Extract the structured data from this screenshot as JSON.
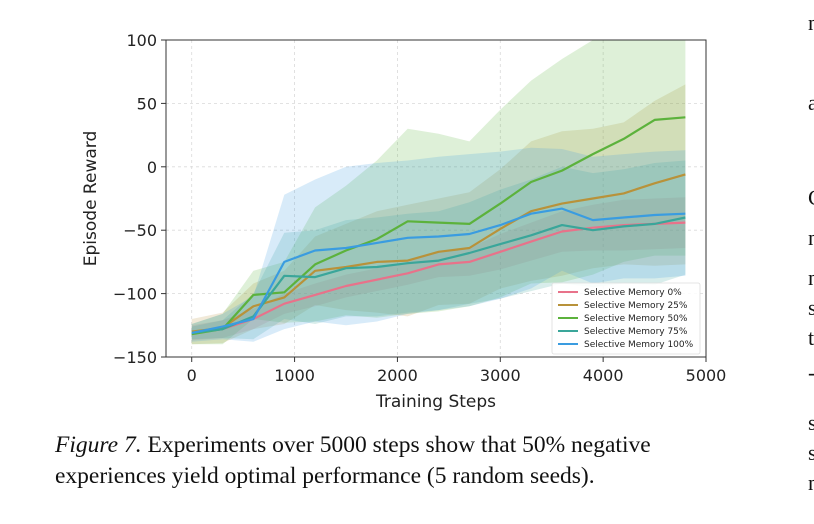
{
  "figure": {
    "caption_label": "Figure 7.",
    "caption_text": " Experiments over 5000 steps show that 50% negative experiences yield optimal performance (5 random seeds)."
  },
  "side_text": [
    "n",
    "a",
    "C",
    "n",
    "n",
    "s",
    "t",
    "-",
    "s",
    "s",
    "n"
  ],
  "chart_data": {
    "type": "line",
    "title": "",
    "xlabel": "Training Steps",
    "ylabel": "Episode Reward",
    "xlim": [
      -250,
      5000
    ],
    "ylim": [
      -150,
      100
    ],
    "xticks": [
      0,
      1000,
      2000,
      3000,
      4000,
      5000
    ],
    "yticks": [
      -150,
      -100,
      -50,
      0,
      50,
      100
    ],
    "xtick_labels": [
      "0",
      "1000",
      "2000",
      "3000",
      "4000",
      "5000"
    ],
    "ytick_labels": [
      "−150",
      "−100",
      "−50",
      "0",
      "50",
      "100"
    ],
    "grid": true,
    "legend_position": "lower-right",
    "series": [
      {
        "name": "Selective Memory 0%",
        "color": "#e8728a",
        "x": [
          0,
          300,
          600,
          900,
          1200,
          1500,
          2100,
          2400,
          2700,
          3000,
          3300,
          3600,
          3900,
          4200,
          4500,
          4800
        ],
        "y": [
          -131,
          -128,
          -120,
          -108,
          -101,
          -94,
          -84,
          -77,
          -75,
          -67,
          -59,
          -51,
          -48,
          -46,
          -45,
          -44
        ],
        "upper": [
          -125,
          -121,
          -112,
          -100,
          -92,
          -85,
          -75,
          -67,
          -64,
          -53,
          -44,
          -35,
          -30,
          -26,
          -25,
          -24
        ],
        "lower": [
          -137,
          -135,
          -128,
          -116,
          -110,
          -103,
          -93,
          -87,
          -86,
          -81,
          -74,
          -67,
          -66,
          -66,
          -65,
          -64
        ]
      },
      {
        "name": "Selective Memory 25%",
        "color": "#b8923a",
        "x": [
          0,
          300,
          600,
          900,
          1200,
          1500,
          1800,
          2100,
          2400,
          2700,
          3000,
          3300,
          3600,
          3900,
          4200,
          4500,
          4800
        ],
        "y": [
          -130,
          -127,
          -110,
          -103,
          -82,
          -79,
          -75,
          -74,
          -67,
          -64,
          -49,
          -35,
          -29,
          -25,
          -21,
          -13,
          -6
        ],
        "upper": [
          -120,
          -115,
          -92,
          -82,
          -55,
          -45,
          -35,
          -30,
          -25,
          -20,
          -2,
          20,
          28,
          30,
          35,
          52,
          65
        ],
        "lower": [
          -140,
          -139,
          -128,
          -124,
          -109,
          -113,
          -115,
          -118,
          -109,
          -108,
          -96,
          -90,
          -86,
          -80,
          -77,
          -78,
          -77
        ]
      },
      {
        "name": "Selective Memory 50%",
        "color": "#5cb23c",
        "x": [
          0,
          300,
          600,
          900,
          1200,
          1500,
          1800,
          2100,
          2400,
          2700,
          3000,
          3300,
          3600,
          3900,
          4200,
          4500,
          4800
        ],
        "y": [
          -132,
          -128,
          -101,
          -99,
          -77,
          -66,
          -57,
          -43,
          -44,
          -45,
          -29,
          -12,
          -3,
          10,
          22,
          37,
          39
        ],
        "upper": [
          -124,
          -116,
          -82,
          -75,
          -32,
          -15,
          5,
          30,
          26,
          20,
          45,
          68,
          85,
          100,
          100,
          100,
          100
        ],
        "lower": [
          -140,
          -140,
          -120,
          -123,
          -122,
          -117,
          -119,
          -116,
          -114,
          -110,
          -103,
          -92,
          -91,
          -85,
          -75,
          -70,
          -70
        ]
      },
      {
        "name": "Selective Memory 75%",
        "color": "#3aa69a",
        "x": [
          0,
          300,
          600,
          900,
          1200,
          1500,
          1800,
          2100,
          2400,
          2700,
          3000,
          3300,
          3600,
          3900,
          4200,
          4500,
          4800
        ],
        "y": [
          -131,
          -128,
          -118,
          -86,
          -87,
          -80,
          -79,
          -76,
          -74,
          -68,
          -61,
          -54,
          -46,
          -50,
          -47,
          -45,
          -40
        ],
        "upper": [
          -126,
          -121,
          -100,
          -52,
          -50,
          -42,
          -40,
          -37,
          -35,
          -28,
          -18,
          -10,
          0,
          -5,
          -2,
          3,
          5
        ],
        "lower": [
          -136,
          -135,
          -136,
          -120,
          -124,
          -118,
          -118,
          -115,
          -113,
          -108,
          -104,
          -98,
          -92,
          -95,
          -92,
          -93,
          -85
        ]
      },
      {
        "name": "Selective Memory 100%",
        "color": "#3a9ce0",
        "x": [
          0,
          300,
          600,
          900,
          1200,
          1500,
          1800,
          2100,
          2400,
          2700,
          3000,
          3300,
          3600,
          3900,
          4200,
          4500,
          4800
        ],
        "y": [
          -131,
          -126,
          -120,
          -75,
          -66,
          -64,
          -60,
          -56,
          -55,
          -53,
          -46,
          -37,
          -33,
          -42,
          -40,
          -38,
          -37
        ],
        "upper": [
          -124,
          -116,
          -102,
          -22,
          -10,
          0,
          3,
          5,
          8,
          10,
          12,
          15,
          14,
          8,
          10,
          12,
          13
        ],
        "lower": [
          -138,
          -136,
          -138,
          -128,
          -122,
          -125,
          -122,
          -116,
          -113,
          -110,
          -104,
          -96,
          -82,
          -92,
          -88,
          -88,
          -86
        ]
      }
    ]
  }
}
